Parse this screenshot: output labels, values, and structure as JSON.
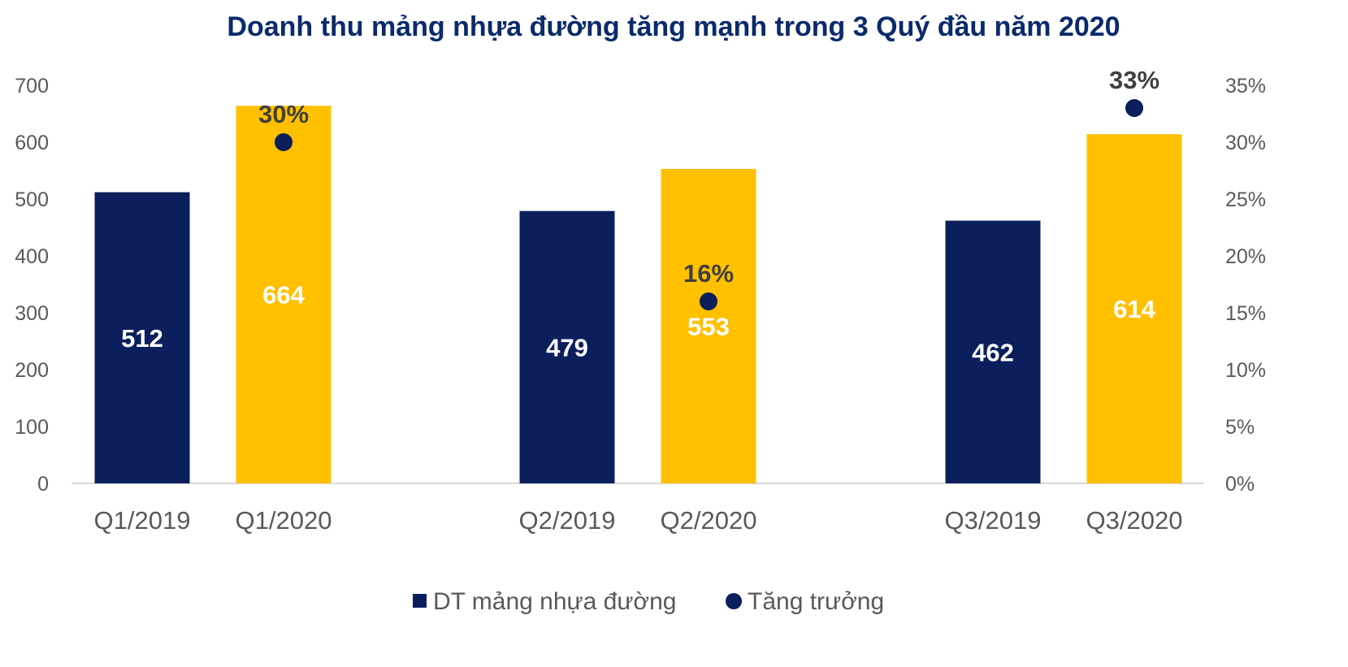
{
  "chart_data": {
    "type": "bar",
    "title": "Doanh thu mảng nhựa đường tăng mạnh trong 3 Quý đầu năm 2020",
    "groups": [
      {
        "bars": [
          {
            "label": "Q1/2019",
            "value": 512,
            "series": 0
          },
          {
            "label": "Q1/2020",
            "value": 664,
            "series": 1
          }
        ],
        "growth": 0.3,
        "growth_label": "30%"
      },
      {
        "bars": [
          {
            "label": "Q2/2019",
            "value": 479,
            "series": 0
          },
          {
            "label": "Q2/2020",
            "value": 553,
            "series": 1
          }
        ],
        "growth": 0.16,
        "growth_label": "16%"
      },
      {
        "bars": [
          {
            "label": "Q3/2019",
            "value": 462,
            "series": 0
          },
          {
            "label": "Q3/2020",
            "value": 614,
            "series": 1
          }
        ],
        "growth": 0.33,
        "growth_label": "33%"
      }
    ],
    "y_left": {
      "min": 0,
      "max": 700,
      "ticks": [
        0,
        100,
        200,
        300,
        400,
        500,
        600,
        700
      ],
      "tick_labels": [
        "0",
        "100",
        "200",
        "300",
        "400",
        "500",
        "600",
        "700"
      ]
    },
    "y_right": {
      "min": 0,
      "max": 0.35,
      "ticks": [
        0,
        0.05,
        0.1,
        0.15,
        0.2,
        0.25,
        0.3,
        0.35
      ],
      "tick_labels": [
        "0%",
        "5%",
        "10%",
        "15%",
        "20%",
        "25%",
        "30%",
        "35%"
      ]
    },
    "legend": {
      "placement": "bottom-center",
      "entries": [
        {
          "name": "DT mảng nhựa đường",
          "marker": "square"
        },
        {
          "name": "Tăng trưởng",
          "marker": "circle"
        }
      ]
    },
    "grid": false
  },
  "colors": {
    "title": "#0a2a6b",
    "navy": "#0b1f5c",
    "gold": "#ffc000",
    "axis_text": "#595959",
    "label_dark": "#404040",
    "label_light": "#ffffff",
    "baseline": "#d9d9d9"
  }
}
